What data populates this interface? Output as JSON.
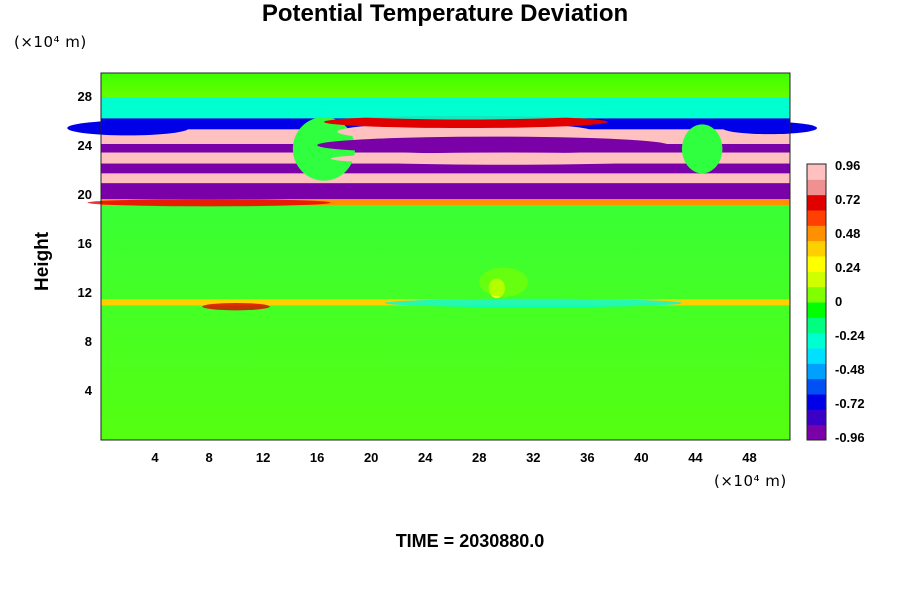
{
  "chart_data": {
    "type": "heatmap",
    "title": "Potential Temperature Deviation",
    "ylabel": "Height",
    "y_unit": "(×10⁴ m)",
    "x_unit": "(×10⁴ m)",
    "footer": "TIME = 2030880.0",
    "x_ticks": [
      "4",
      "8",
      "12",
      "16",
      "20",
      "24",
      "28",
      "32",
      "36",
      "40",
      "44",
      "48"
    ],
    "y_ticks": [
      "4",
      "8",
      "12",
      "16",
      "20",
      "24",
      "28"
    ],
    "xlim": [
      0,
      51
    ],
    "ylim": [
      0,
      30
    ],
    "colorbar": {
      "ticks": [
        "0.96",
        "0.72",
        "0.48",
        "0.24",
        "0",
        "-0.24",
        "-0.48",
        "-0.72",
        "-0.96"
      ],
      "range": [
        -0.96,
        0.96
      ],
      "colors": [
        "#7a00a8",
        "#3a00c8",
        "#0000e8",
        "#0050f5",
        "#00a0ff",
        "#00e0ff",
        "#00ffd0",
        "#00ff80",
        "#00ff00",
        "#80ff00",
        "#d0ff00",
        "#ffff00",
        "#ffd000",
        "#ff9000",
        "#ff4000",
        "#e00000",
        "#f09090",
        "#ffc0c0"
      ]
    },
    "bands": [
      {
        "y": [
          19.2,
          19.7
        ],
        "value": 0.5
      },
      {
        "y": [
          19.7,
          21.0
        ],
        "value": -0.96
      },
      {
        "y": [
          21.0,
          21.8
        ],
        "value": 0.96
      },
      {
        "y": [
          21.8,
          22.6
        ],
        "value": -0.96
      },
      {
        "y": [
          22.6,
          23.5
        ],
        "value": 0.96
      },
      {
        "y": [
          23.5,
          24.2
        ],
        "value": -0.96
      },
      {
        "y": [
          24.2,
          25.4
        ],
        "value": 0.96
      },
      {
        "y": [
          25.4,
          26.3
        ],
        "value": -0.72
      },
      {
        "y": [
          26.3,
          28.0
        ],
        "value": -0.24
      },
      {
        "y": [
          11.0,
          11.5
        ],
        "value": 0.4
      }
    ],
    "grid": false
  }
}
